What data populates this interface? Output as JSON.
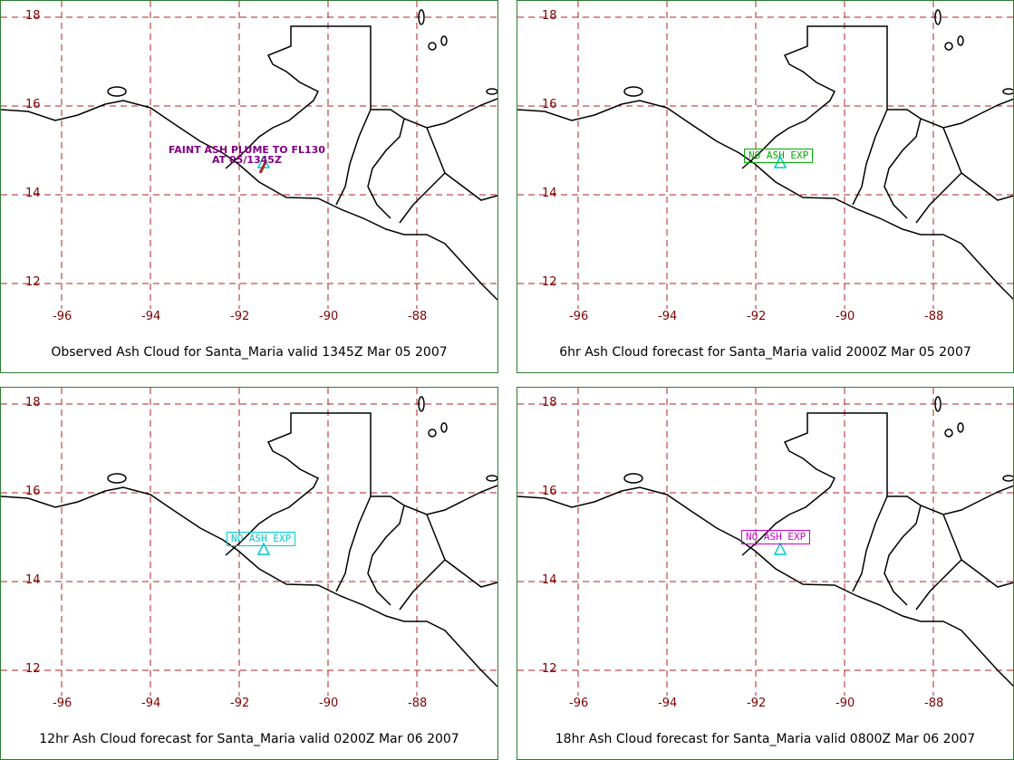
{
  "map": {
    "y_ticks": [
      "18",
      "16",
      "14",
      "12"
    ],
    "x_ticks": [
      "-96",
      "-94",
      "-92",
      "-90",
      "-88"
    ],
    "colors": {
      "tick_labels": "#800000",
      "grid": "#b22222",
      "coastline": "#000000",
      "frame": "#2e7d32",
      "observed_text": "#800080",
      "volcano_marker": "#00cccc"
    }
  },
  "panels": [
    {
      "caption": "Observed Ash Cloud for Santa_Maria valid 1345Z Mar 05 2007",
      "annotation_line1": "FAINT ASH PLUME TO FL130",
      "annotation_line2": "AT 05/1345Z"
    },
    {
      "caption": "6hr Ash Cloud forecast for Santa_Maria valid 2000Z Mar 05 2007",
      "box_text": "NO ASH EXP",
      "box_color": "#00aa00"
    },
    {
      "caption": "12hr Ash Cloud forecast for Santa_Maria valid 0200Z Mar 06 2007",
      "box_text": "NO ASH EXP",
      "box_color": "#00cccc"
    },
    {
      "caption": "18hr Ash Cloud forecast for Santa_Maria valid 0800Z Mar 06 2007",
      "box_text": "NO ASH EXP",
      "box_color": "#cc00cc"
    }
  ]
}
